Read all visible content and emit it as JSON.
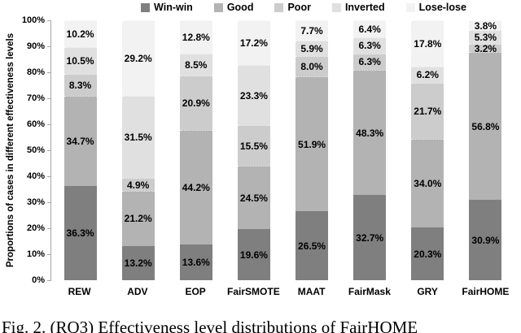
{
  "caption": "Fig. 2.  (RQ3) Effectiveness level distributions of FairHOME",
  "chart_data": {
    "type": "bar",
    "stacked": true,
    "title": "",
    "categories": [
      "REW",
      "ADV",
      "EOP",
      "FairSMOTE",
      "MAAT",
      "FairMask",
      "GRY",
      "FairHOME"
    ],
    "series": [
      {
        "name": "Win-win",
        "color": "#7f7f7f",
        "values": [
          36.3,
          13.2,
          13.6,
          19.6,
          26.5,
          32.7,
          20.3,
          30.9
        ]
      },
      {
        "name": "Good",
        "color": "#b3b3b3",
        "values": [
          34.7,
          21.2,
          44.2,
          24.5,
          51.9,
          48.3,
          34.0,
          56.8
        ]
      },
      {
        "name": "Poor",
        "color": "#cccccc",
        "values": [
          8.3,
          4.9,
          20.9,
          15.5,
          8.0,
          6.3,
          21.7,
          3.2
        ]
      },
      {
        "name": "Inverted",
        "color": "#e0e0e0",
        "values": [
          10.5,
          31.5,
          8.5,
          23.3,
          5.9,
          6.3,
          6.2,
          5.3
        ]
      },
      {
        "name": "Lose-lose",
        "color": "#f2f2f2",
        "values": [
          10.2,
          29.2,
          12.8,
          17.2,
          7.7,
          6.4,
          17.8,
          3.8
        ]
      }
    ],
    "data_label_format": "one_decimal_percent",
    "xlabel": "",
    "ylabel": "Proportions of cases in different effectiveness levels",
    "ylim": [
      0,
      100
    ],
    "y_ticks": [
      "0%",
      "10%",
      "20%",
      "30%",
      "40%",
      "50%",
      "60%",
      "70%",
      "80%",
      "90%",
      "100%"
    ],
    "legend": [
      "Win-win",
      "Good",
      "Poor",
      "Inverted",
      "Lose-lose"
    ],
    "legend_position": "top",
    "grid": false,
    "axis_color": "#a6a6a6",
    "label_color": "#000000"
  }
}
